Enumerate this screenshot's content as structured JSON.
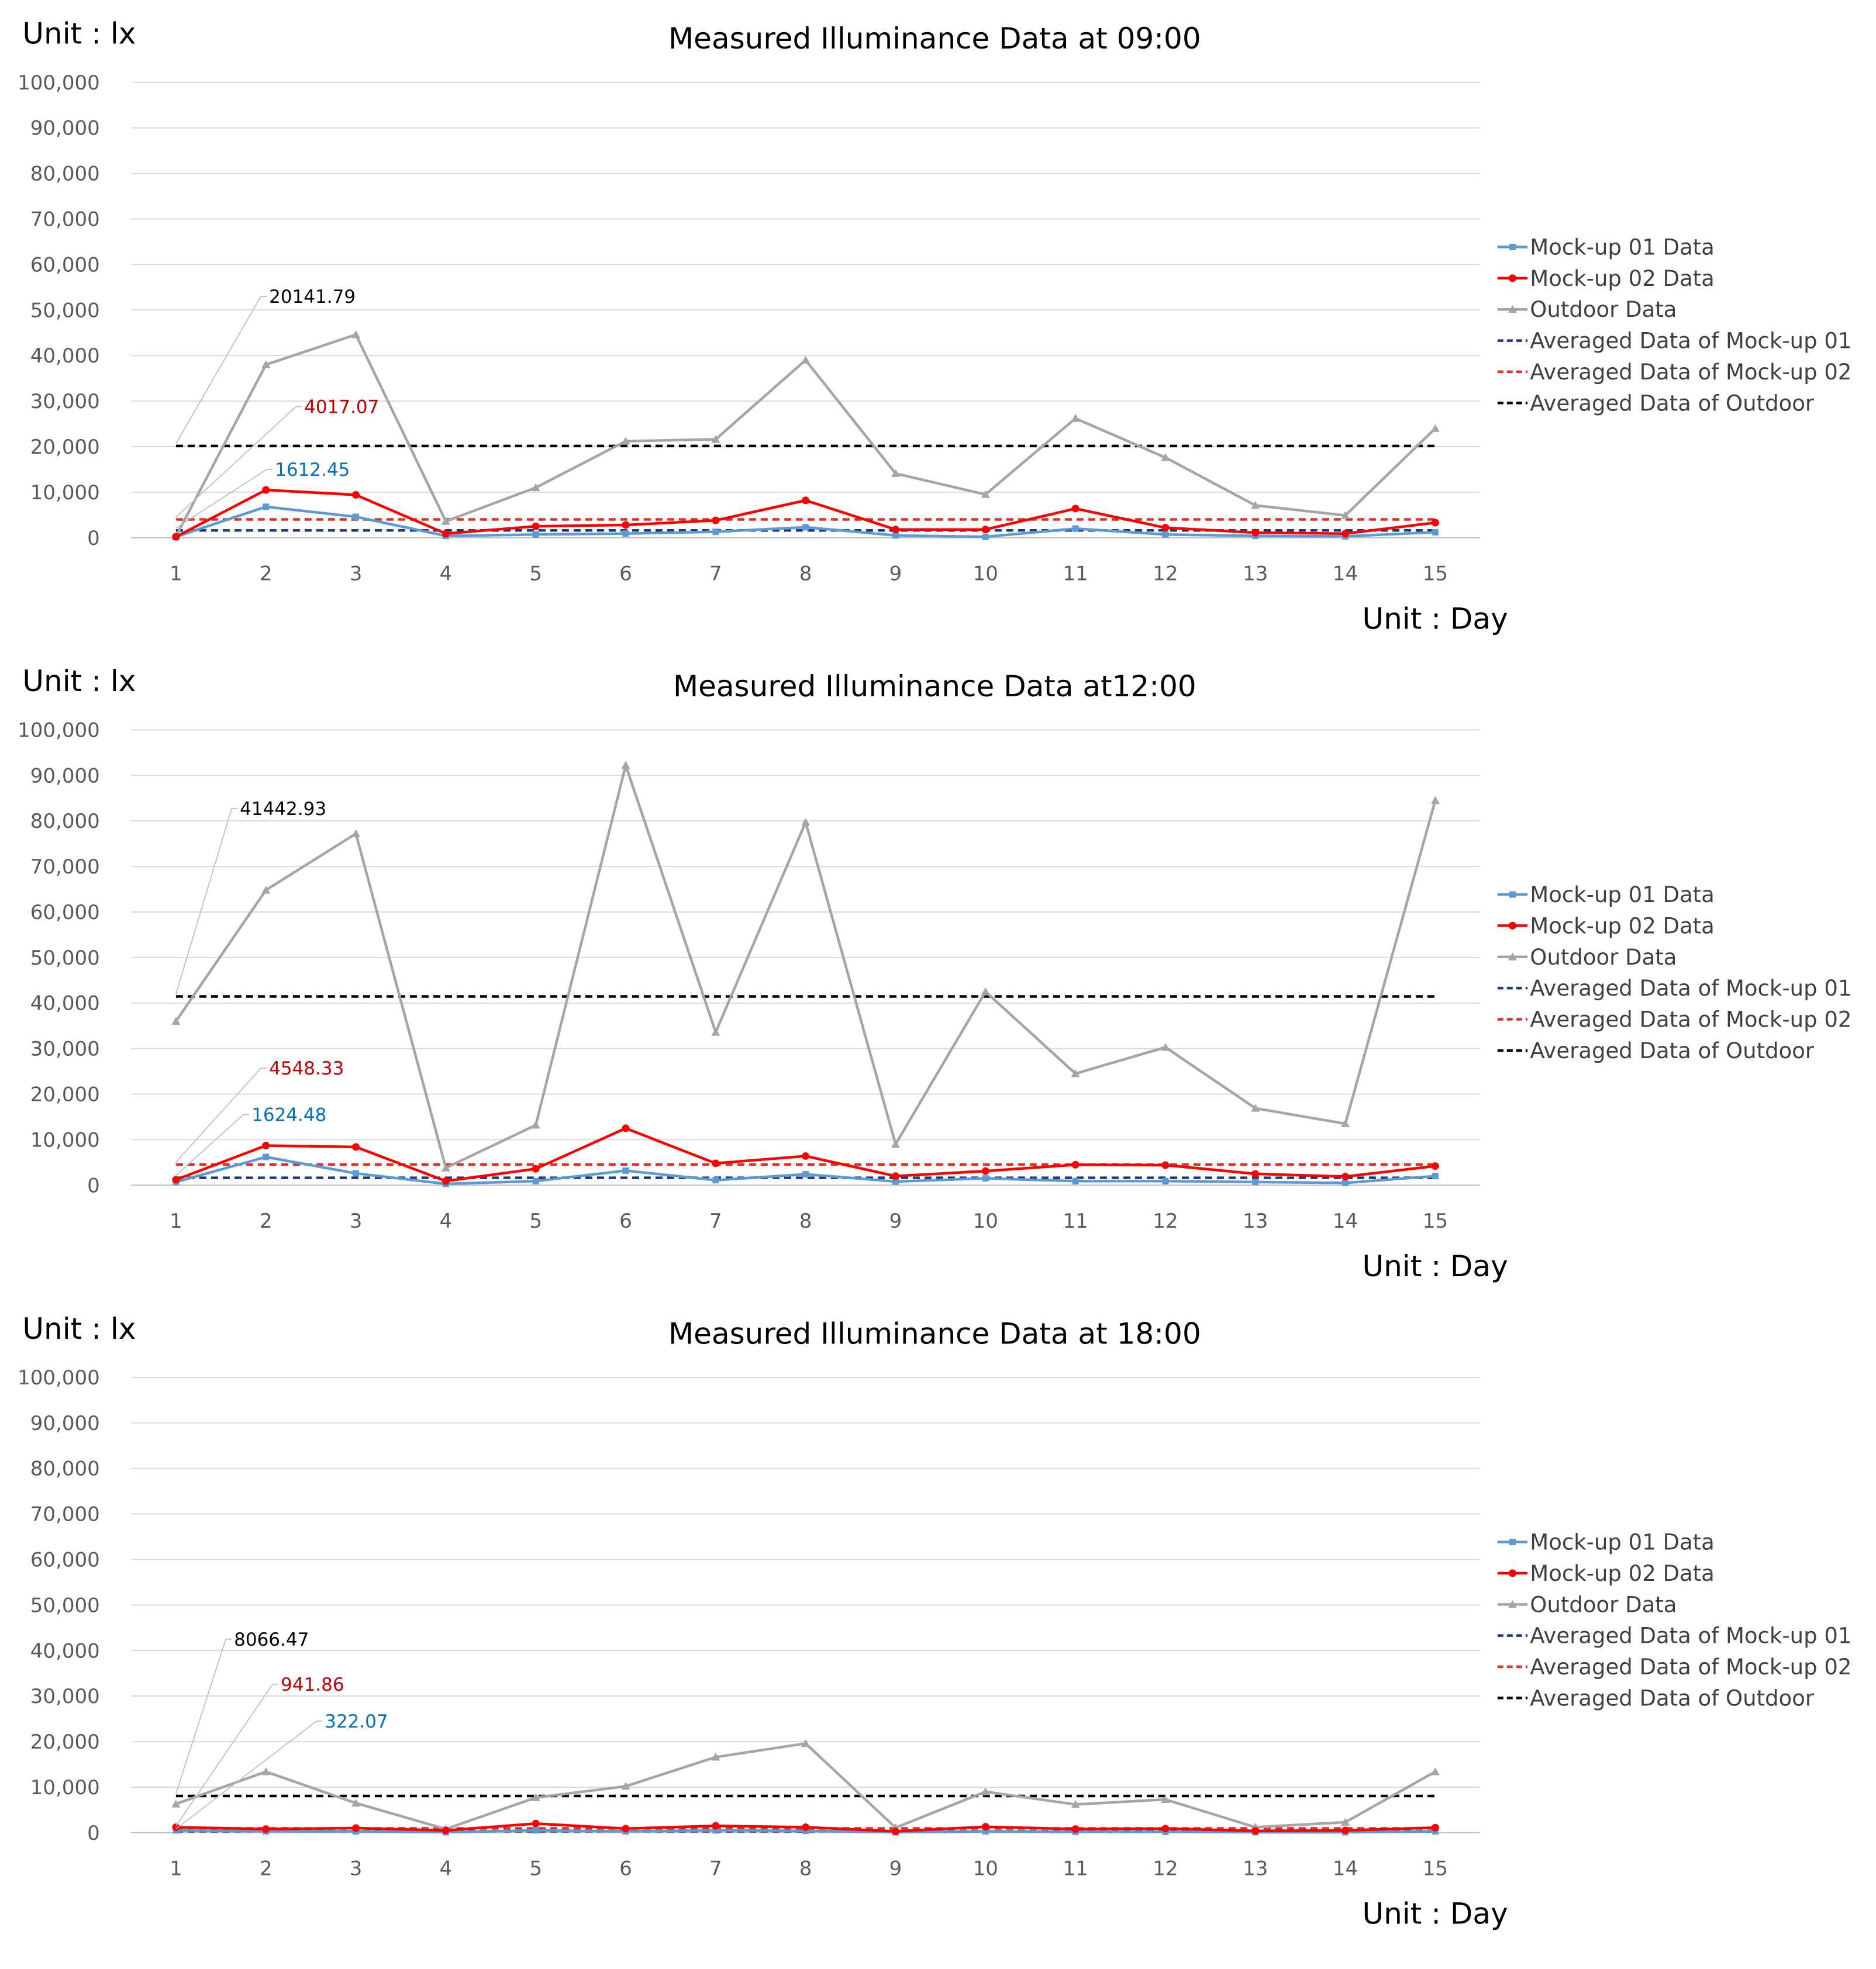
{
  "colors": {
    "mockup01": "#5B9BD5",
    "mockup02": "#FF0000",
    "outdoor": "#A5A5A5",
    "avg_mockup01": "#1F3A7A",
    "avg_mockup02": "#E0302A",
    "avg_outdoor": "#000000",
    "callout_mockup01": "#0070C0",
    "callout_mockup02": "#C00000",
    "callout_outdoor": "#000000",
    "grid": "#D9D9D9",
    "axis": "#BFBFBF"
  },
  "chart_data": [
    {
      "type": "line",
      "title": "Measured Illuminance Data at 09:00",
      "ylabel": "Unit : lx",
      "xlabel": "Unit : Day",
      "ylim": [
        0,
        100000
      ],
      "yticks": [
        "0",
        "10,000",
        "20,000",
        "30,000",
        "40,000",
        "50,000",
        "60,000",
        "70,000",
        "80,000",
        "90,000",
        "100,000"
      ],
      "categories": [
        "1",
        "2",
        "3",
        "4",
        "5",
        "6",
        "7",
        "8",
        "9",
        "10",
        "11",
        "12",
        "13",
        "14",
        "15"
      ],
      "grid": true,
      "legend_position": "right",
      "series": [
        {
          "name": "Mock-up 01 Data",
          "marker": "square",
          "values": [
            200,
            6800,
            4600,
            400,
            700,
            900,
            1300,
            2300,
            500,
            200,
            2000,
            700,
            400,
            300,
            1200
          ]
        },
        {
          "name": "Mock-up 02 Data",
          "marker": "circle",
          "values": [
            200,
            10500,
            9400,
            900,
            2500,
            2800,
            3800,
            8200,
            1800,
            1800,
            6400,
            2200,
            1100,
            900,
            3300
          ]
        },
        {
          "name": "Outdoor Data",
          "marker": "triangle",
          "values": [
            300,
            38000,
            44600,
            3600,
            11000,
            21200,
            21600,
            39000,
            14100,
            9500,
            26200,
            17600,
            7100,
            4900,
            24000
          ]
        },
        {
          "name": "Averaged Data of Mock-up 01",
          "dashed": true,
          "values": [
            1612.45,
            1612.45,
            1612.45,
            1612.45,
            1612.45,
            1612.45,
            1612.45,
            1612.45,
            1612.45,
            1612.45,
            1612.45,
            1612.45,
            1612.45,
            1612.45,
            1612.45
          ]
        },
        {
          "name": "Averaged Data of Mock-up 02",
          "dashed": true,
          "values": [
            4017.07,
            4017.07,
            4017.07,
            4017.07,
            4017.07,
            4017.07,
            4017.07,
            4017.07,
            4017.07,
            4017.07,
            4017.07,
            4017.07,
            4017.07,
            4017.07,
            4017.07
          ]
        },
        {
          "name": "Averaged Data of Outdoor",
          "dashed": true,
          "values": [
            20141.79,
            20141.79,
            20141.79,
            20141.79,
            20141.79,
            20141.79,
            20141.79,
            20141.79,
            20141.79,
            20141.79,
            20141.79,
            20141.79,
            20141.79,
            20141.79,
            20141.79
          ]
        }
      ],
      "annotations": [
        {
          "text": "20141.79",
          "series": "Averaged Data of Outdoor",
          "value": 20141.79,
          "label_level": 53000
        },
        {
          "text": "4017.07",
          "series": "Averaged Data of Mock-up 02",
          "value": 4017.07,
          "label_level": 28800
        },
        {
          "text": "1612.45",
          "series": "Averaged Data of Mock-up 01",
          "value": 1612.45,
          "label_level": 15000
        }
      ]
    },
    {
      "type": "line",
      "title": "Measured Illuminance Data at12:00",
      "ylabel": "Unit : lx",
      "xlabel": "Unit : Day",
      "ylim": [
        0,
        100000
      ],
      "yticks": [
        "0",
        "10,000",
        "20,000",
        "30,000",
        "40,000",
        "50,000",
        "60,000",
        "70,000",
        "80,000",
        "90,000",
        "100,000"
      ],
      "categories": [
        "1",
        "2",
        "3",
        "4",
        "5",
        "6",
        "7",
        "8",
        "9",
        "10",
        "11",
        "12",
        "13",
        "14",
        "15"
      ],
      "grid": true,
      "legend_position": "right",
      "series": [
        {
          "name": "Mock-up 01 Data",
          "marker": "square",
          "values": [
            700,
            6200,
            2600,
            300,
            900,
            3200,
            1100,
            2400,
            800,
            1500,
            900,
            900,
            700,
            500,
            2000
          ]
        },
        {
          "name": "Mock-up 02 Data",
          "marker": "circle",
          "values": [
            1200,
            8700,
            8400,
            900,
            3600,
            12500,
            4800,
            6400,
            2000,
            3100,
            4500,
            4400,
            2500,
            1900,
            4200
          ]
        },
        {
          "name": "Outdoor Data",
          "marker": "triangle",
          "values": [
            36000,
            64800,
            77200,
            3800,
            13200,
            92200,
            33600,
            79700,
            9000,
            42500,
            24500,
            30300,
            16900,
            13500,
            84500
          ]
        },
        {
          "name": "Averaged Data of Mock-up 01",
          "dashed": true,
          "values": [
            1624.48,
            1624.48,
            1624.48,
            1624.48,
            1624.48,
            1624.48,
            1624.48,
            1624.48,
            1624.48,
            1624.48,
            1624.48,
            1624.48,
            1624.48,
            1624.48,
            1624.48
          ]
        },
        {
          "name": "Averaged Data of Mock-up 02",
          "dashed": true,
          "values": [
            4548.33,
            4548.33,
            4548.33,
            4548.33,
            4548.33,
            4548.33,
            4548.33,
            4548.33,
            4548.33,
            4548.33,
            4548.33,
            4548.33,
            4548.33,
            4548.33,
            4548.33
          ]
        },
        {
          "name": "Averaged Data of Outdoor",
          "dashed": true,
          "values": [
            41442.93,
            41442.93,
            41442.93,
            41442.93,
            41442.93,
            41442.93,
            41442.93,
            41442.93,
            41442.93,
            41442.93,
            41442.93,
            41442.93,
            41442.93,
            41442.93,
            41442.93
          ]
        }
      ],
      "annotations": [
        {
          "text": "41442.93",
          "series": "Averaged Data of Outdoor",
          "value": 41442.93,
          "label_level": 82700
        },
        {
          "text": "4548.33",
          "series": "Averaged Data of Mock-up 02",
          "value": 4548.33,
          "label_level": 25700
        },
        {
          "text": "1624.48",
          "series": "Averaged Data of Mock-up 01",
          "value": 1624.48,
          "label_level": 15500
        }
      ]
    },
    {
      "type": "line",
      "title": "Measured Illuminance Data at 18:00",
      "ylabel": "Unit : lx",
      "xlabel": "Unit : Day",
      "ylim": [
        0,
        100000
      ],
      "yticks": [
        "0",
        "10,000",
        "20,000",
        "30,000",
        "40,000",
        "50,000",
        "60,000",
        "70,000",
        "80,000",
        "90,000",
        "100,000"
      ],
      "categories": [
        "1",
        "2",
        "3",
        "4",
        "5",
        "6",
        "7",
        "8",
        "9",
        "10",
        "11",
        "12",
        "13",
        "14",
        "15"
      ],
      "grid": true,
      "legend_position": "right",
      "series": [
        {
          "name": "Mock-up 01 Data",
          "marker": "square",
          "values": [
            500,
            300,
            300,
            100,
            500,
            300,
            500,
            400,
            100,
            300,
            200,
            200,
            100,
            100,
            300
          ]
        },
        {
          "name": "Mock-up 02 Data",
          "marker": "circle",
          "values": [
            1200,
            800,
            1000,
            500,
            2000,
            900,
            1500,
            1200,
            300,
            1300,
            800,
            900,
            400,
            500,
            1100
          ]
        },
        {
          "name": "Outdoor Data",
          "marker": "triangle",
          "values": [
            6300,
            13400,
            6500,
            800,
            7700,
            10200,
            16600,
            19600,
            1100,
            9000,
            6200,
            7300,
            1200,
            2300,
            13400
          ]
        },
        {
          "name": "Averaged Data of Mock-up 01",
          "dashed": true,
          "values": [
            322.07,
            322.07,
            322.07,
            322.07,
            322.07,
            322.07,
            322.07,
            322.07,
            322.07,
            322.07,
            322.07,
            322.07,
            322.07,
            322.07,
            322.07
          ]
        },
        {
          "name": "Averaged Data of Mock-up 02",
          "dashed": true,
          "values": [
            941.86,
            941.86,
            941.86,
            941.86,
            941.86,
            941.86,
            941.86,
            941.86,
            941.86,
            941.86,
            941.86,
            941.86,
            941.86,
            941.86,
            941.86
          ]
        },
        {
          "name": "Averaged Data of Outdoor",
          "dashed": true,
          "values": [
            8066.47,
            8066.47,
            8066.47,
            8066.47,
            8066.47,
            8066.47,
            8066.47,
            8066.47,
            8066.47,
            8066.47,
            8066.47,
            8066.47,
            8066.47,
            8066.47,
            8066.47
          ]
        }
      ],
      "annotations": [
        {
          "text": "8066.47",
          "series": "Averaged Data of Outdoor",
          "value": 8066.47,
          "label_level": 42500
        },
        {
          "text": "941.86",
          "series": "Averaged Data of Mock-up 02",
          "value": 941.86,
          "label_level": 32600
        },
        {
          "text": "322.07",
          "series": "Averaged Data of Mock-up 01",
          "value": 322.07,
          "label_level": 24500
        }
      ]
    }
  ]
}
